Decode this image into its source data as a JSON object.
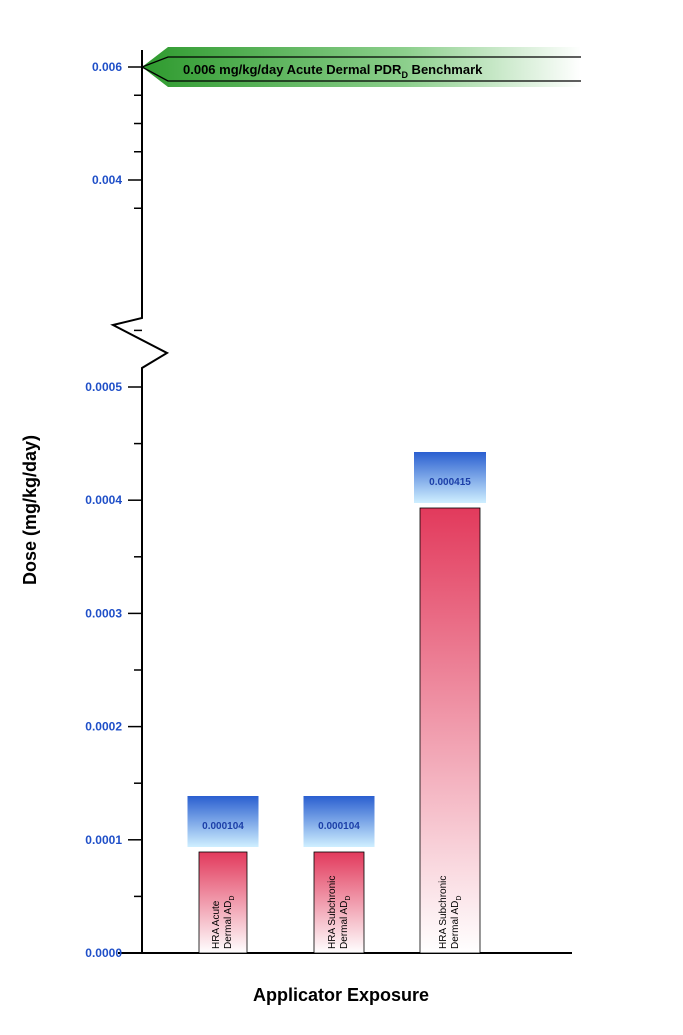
{
  "chart_data": {
    "type": "bar",
    "title": "",
    "xlabel": "Applicator Exposure",
    "ylabel": "Dose (mg/kg/day)",
    "axis_break": true,
    "lower_segment": {
      "ylim": [
        0,
        0.0005
      ],
      "ticks": [
        "0.0000",
        "0.0001",
        "0.0002",
        "0.0003",
        "0.0004",
        "0.0005"
      ],
      "tick_values": [
        0,
        0.0001,
        0.0002,
        0.0003,
        0.0004,
        0.0005
      ]
    },
    "upper_segment": {
      "ticks": [
        "0.004",
        "0.006"
      ],
      "tick_values": [
        0.004,
        0.006
      ]
    },
    "categories": [
      {
        "line1": "HRA Acute",
        "line2": "Dermal AD",
        "sub": "D"
      },
      {
        "line1": "HRA Subchronic",
        "line2": "Dermal AD",
        "sub": "D"
      },
      {
        "line1": "HRA Subchronic",
        "line2": "Dermal AD",
        "sub": "D"
      }
    ],
    "values": [
      0.000104,
      0.000104,
      0.000415
    ],
    "value_labels": [
      "0.000104",
      "0.000104",
      "0.000415"
    ],
    "benchmark": {
      "value": 0.006,
      "label_main": "0.006 mg/kg/day Acute Dermal PDR",
      "label_sub": "D",
      "label_tail": " Benchmark"
    },
    "colors": {
      "tick_label": "#1f4fc8",
      "bar_top": "#e23a5c",
      "bar_bottom": "#ffffff",
      "value_box_top": "#2a5fd0",
      "value_box_bottom": "#cfefff",
      "benchmark_arrow": "#3aa83a"
    }
  }
}
